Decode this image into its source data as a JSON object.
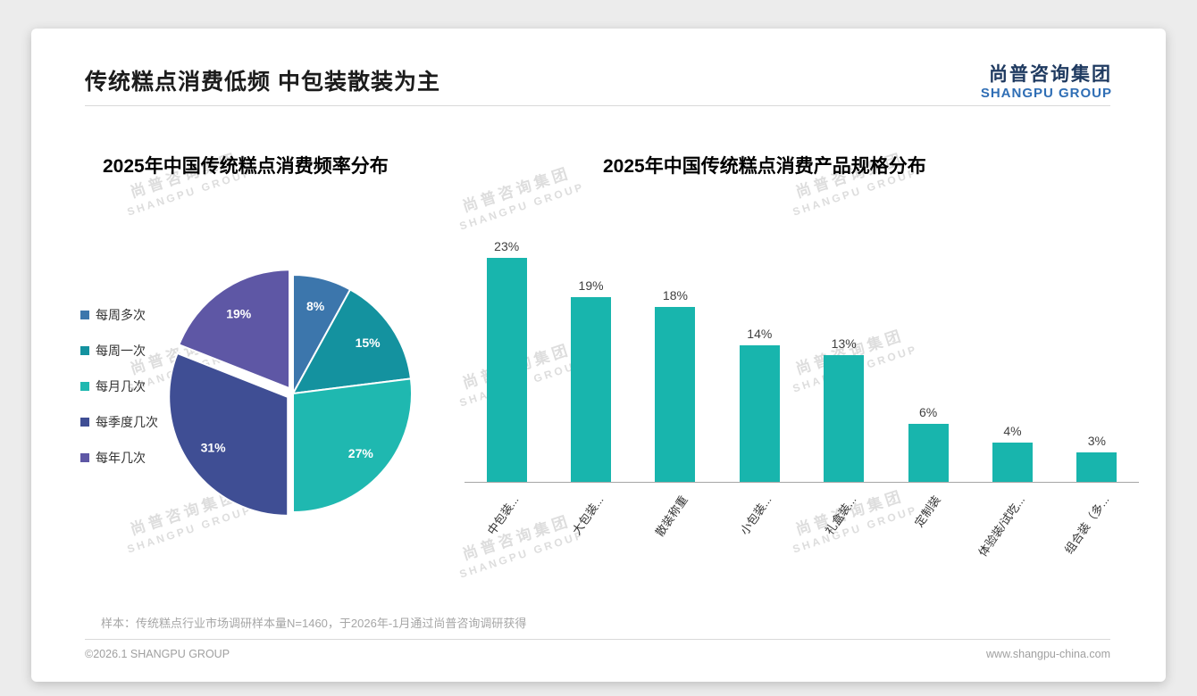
{
  "page": {
    "title": "传统糕点消费低频 中包装散装为主",
    "logo": {
      "cn": "尚普咨询集团",
      "en": "SHANGPU GROUP"
    },
    "watermark": {
      "cn": "尚普咨询集团",
      "en": "SHANGPU GROUP"
    },
    "note": "样本：传统糕点行业市场调研样本量N=1460，于2026年-1月通过尚普咨询调研获得",
    "footer": {
      "left": "©2026.1 SHANGPU GROUP",
      "right": "www.shangpu-china.com"
    }
  },
  "chart_data": [
    {
      "type": "pie",
      "title": "2025年中国传统糕点消费频率分布",
      "categories": [
        "每周多次",
        "每周一次",
        "每月几次",
        "每季度几次",
        "每年几次"
      ],
      "values": [
        8,
        15,
        27,
        31,
        19
      ],
      "labels": [
        "8%",
        "15%",
        "27%",
        "31%",
        "19%"
      ],
      "unit": "%",
      "colors": [
        "#3C76AC",
        "#14929F",
        "#1FB8B0",
        "#3F4E94",
        "#5E57A5"
      ],
      "start_angle": "top",
      "direction": "clockwise",
      "legend_position": "left",
      "exploded": [
        false,
        false,
        false,
        true,
        true
      ]
    },
    {
      "type": "bar",
      "title": "2025年中国传统糕点消费产品规格分布",
      "categories": [
        "中包装...",
        "大包装...",
        "散装称重",
        "小包装...",
        "礼盒装...",
        "定制装",
        "体验装/试吃...",
        "组合装（多..."
      ],
      "values": [
        23,
        19,
        18,
        14,
        13,
        6,
        4,
        3
      ],
      "value_labels": [
        "23%",
        "19%",
        "18%",
        "14%",
        "13%",
        "6%",
        "4%",
        "3%"
      ],
      "unit": "%",
      "bar_color": "#18B5AD",
      "ylim": [
        0,
        25
      ],
      "grid": false,
      "xlabel": "",
      "ylabel": ""
    }
  ]
}
